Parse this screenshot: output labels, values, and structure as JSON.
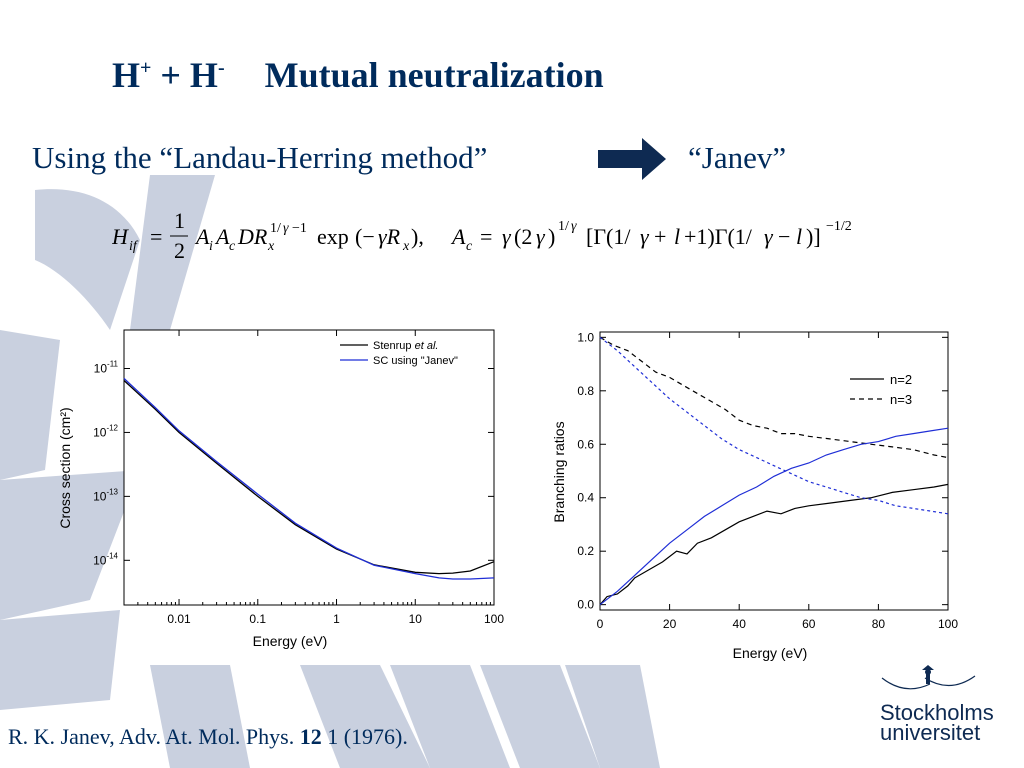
{
  "slide": {
    "title_part1": "H",
    "title_sup1": "+",
    "title_part2": " + H",
    "title_sup2": "-",
    "title_part3": "Mutual neutralization",
    "subtitle": "Using the “Landau-Herring method”",
    "janev_label": "“Janev”",
    "citation_authors": "R. K. Janev, Adv. At. Mol. Phys. ",
    "citation_volume": "12",
    "citation_rest": " 1 (1976).",
    "logo_line1": "Stockholms",
    "logo_line2": "universitet"
  },
  "colors": {
    "title": "#002b5c",
    "arrow": "#0e2a52",
    "decor": "#c9d0df",
    "series_black": "#000000",
    "series_blue": "#1f2ed6"
  },
  "chart_data": [
    {
      "type": "line",
      "ylabel": "Cross section (cm²)",
      "xlabel": "Energy (eV)",
      "xscale": "log",
      "yscale": "log",
      "xlim": [
        0.002,
        100
      ],
      "ylim": [
        2e-15,
        4e-11
      ],
      "x_ticks": [
        "0.01",
        "0.1",
        "1",
        "10",
        "100"
      ],
      "y_ticks": [
        "10-11",
        "10-12",
        "10-13",
        "10-14"
      ],
      "legend": "top-right",
      "series": [
        {
          "name": "Stenrup et al.",
          "color": "#000000",
          "points": [
            [
              0.002,
              6.5e-12
            ],
            [
              0.005,
              2.3e-12
            ],
            [
              0.01,
              1e-12
            ],
            [
              0.03,
              3.3e-13
            ],
            [
              0.1,
              1e-13
            ],
            [
              0.3,
              3.6e-14
            ],
            [
              1,
              1.5e-14
            ],
            [
              3,
              8.5e-15
            ],
            [
              10,
              6.5e-15
            ],
            [
              20,
              6.2e-15
            ],
            [
              30,
              6.3e-15
            ],
            [
              50,
              6.8e-15
            ],
            [
              100,
              9.5e-15
            ]
          ]
        },
        {
          "name": "SC using \"Janev\"",
          "color": "#1f2ed6",
          "points": [
            [
              0.002,
              7e-12
            ],
            [
              0.005,
              2.45e-12
            ],
            [
              0.01,
              1.06e-12
            ],
            [
              0.03,
              3.5e-13
            ],
            [
              0.1,
              1.08e-13
            ],
            [
              0.3,
              3.8e-14
            ],
            [
              1,
              1.55e-14
            ],
            [
              3,
              8.4e-15
            ],
            [
              10,
              6.2e-15
            ],
            [
              20,
              5.3e-15
            ],
            [
              30,
              5.1e-15
            ],
            [
              50,
              5.1e-15
            ],
            [
              100,
              5.3e-15
            ]
          ]
        }
      ]
    },
    {
      "type": "line",
      "ylabel": "Branching ratios",
      "xlabel": "Energy (eV)",
      "xlim": [
        0,
        100
      ],
      "ylim": [
        -0.02,
        1.02
      ],
      "x_ticks": [
        "0",
        "20",
        "40",
        "60",
        "80",
        "100"
      ],
      "y_ticks": [
        "0.0",
        "0.2",
        "0.4",
        "0.6",
        "0.8",
        "1.0"
      ],
      "legend": "top-right",
      "series": [
        {
          "name": "n=2",
          "style": "solid",
          "color": "#000000",
          "points": [
            [
              0,
              0.0
            ],
            [
              2,
              0.03
            ],
            [
              5,
              0.04
            ],
            [
              8,
              0.07
            ],
            [
              10,
              0.1
            ],
            [
              14,
              0.13
            ],
            [
              18,
              0.16
            ],
            [
              22,
              0.2
            ],
            [
              25,
              0.19
            ],
            [
              28,
              0.23
            ],
            [
              32,
              0.25
            ],
            [
              36,
              0.28
            ],
            [
              40,
              0.31
            ],
            [
              44,
              0.33
            ],
            [
              48,
              0.35
            ],
            [
              52,
              0.34
            ],
            [
              56,
              0.36
            ],
            [
              60,
              0.37
            ],
            [
              66,
              0.38
            ],
            [
              72,
              0.39
            ],
            [
              78,
              0.4
            ],
            [
              84,
              0.42
            ],
            [
              90,
              0.43
            ],
            [
              96,
              0.44
            ],
            [
              100,
              0.45
            ]
          ]
        },
        {
          "name": "n=3",
          "style": "dashed",
          "color": "#000000",
          "points": [
            [
              0,
              1.0
            ],
            [
              4,
              0.97
            ],
            [
              8,
              0.95
            ],
            [
              12,
              0.91
            ],
            [
              16,
              0.87
            ],
            [
              20,
              0.85
            ],
            [
              24,
              0.82
            ],
            [
              28,
              0.79
            ],
            [
              32,
              0.76
            ],
            [
              36,
              0.73
            ],
            [
              40,
              0.69
            ],
            [
              44,
              0.67
            ],
            [
              48,
              0.66
            ],
            [
              52,
              0.64
            ],
            [
              56,
              0.64
            ],
            [
              60,
              0.63
            ],
            [
              66,
              0.62
            ],
            [
              72,
              0.61
            ],
            [
              78,
              0.6
            ],
            [
              84,
              0.59
            ],
            [
              90,
              0.58
            ],
            [
              96,
              0.56
            ],
            [
              100,
              0.55
            ]
          ]
        },
        {
          "name": "",
          "style": "solid",
          "color": "#1f2ed6",
          "points": [
            [
              0,
              0.0
            ],
            [
              5,
              0.05
            ],
            [
              10,
              0.11
            ],
            [
              15,
              0.17
            ],
            [
              20,
              0.23
            ],
            [
              25,
              0.28
            ],
            [
              30,
              0.33
            ],
            [
              35,
              0.37
            ],
            [
              40,
              0.41
            ],
            [
              45,
              0.44
            ],
            [
              50,
              0.48
            ],
            [
              55,
              0.51
            ],
            [
              60,
              0.53
            ],
            [
              65,
              0.56
            ],
            [
              70,
              0.58
            ],
            [
              75,
              0.6
            ],
            [
              80,
              0.61
            ],
            [
              85,
              0.63
            ],
            [
              90,
              0.64
            ],
            [
              95,
              0.65
            ],
            [
              100,
              0.66
            ]
          ]
        },
        {
          "name": "",
          "style": "dotted",
          "color": "#1f2ed6",
          "points": [
            [
              0,
              1.0
            ],
            [
              5,
              0.95
            ],
            [
              10,
              0.89
            ],
            [
              15,
              0.83
            ],
            [
              20,
              0.77
            ],
            [
              25,
              0.72
            ],
            [
              30,
              0.67
            ],
            [
              35,
              0.62
            ],
            [
              40,
              0.58
            ],
            [
              45,
              0.55
            ],
            [
              50,
              0.52
            ],
            [
              55,
              0.49
            ],
            [
              60,
              0.46
            ],
            [
              65,
              0.44
            ],
            [
              70,
              0.42
            ],
            [
              75,
              0.4
            ],
            [
              80,
              0.39
            ],
            [
              85,
              0.37
            ],
            [
              90,
              0.36
            ],
            [
              95,
              0.35
            ],
            [
              100,
              0.34
            ]
          ]
        }
      ]
    }
  ]
}
